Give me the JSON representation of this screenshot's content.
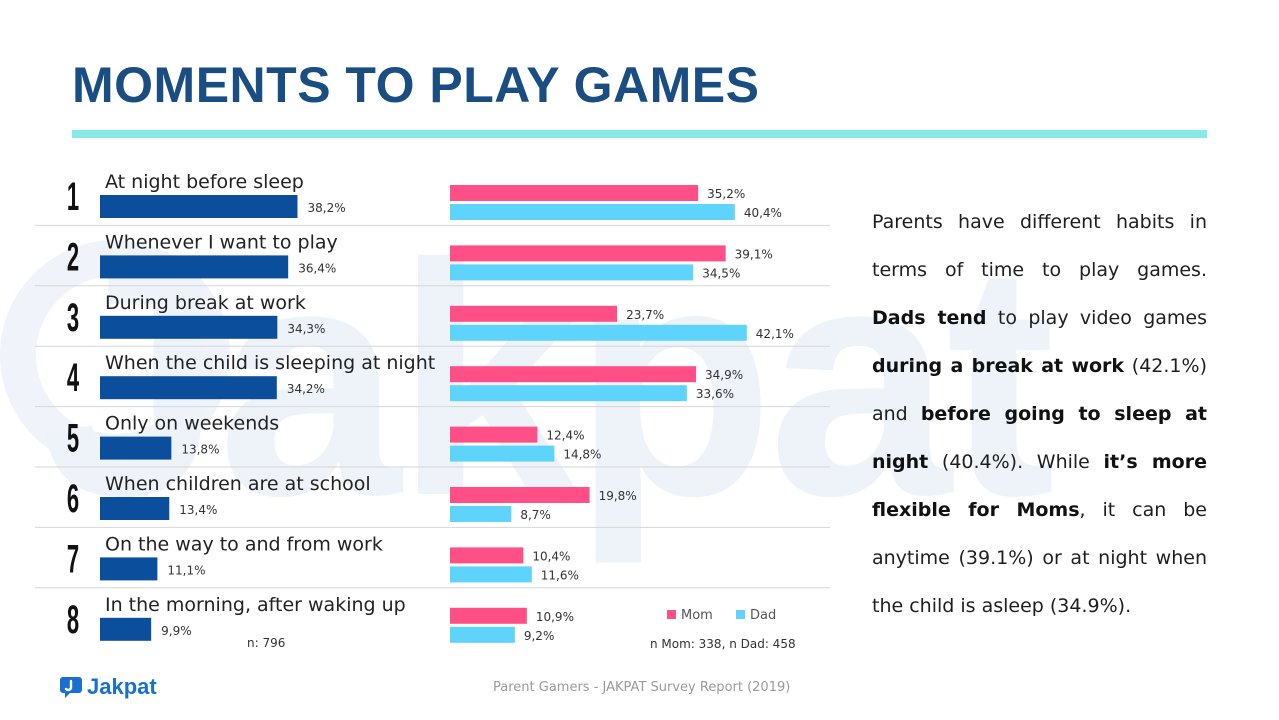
{
  "page": {
    "title": "MOMENTS TO PLAY GAMES",
    "footer": "Parent Gamers - JAKPAT Survey Report (2019)",
    "brand": "Jakpat",
    "watermark": "Jakpat",
    "description": [
      {
        "text": "Parents have different habits in terms of time to play games. ",
        "bold": false
      },
      {
        "text": "Dads tend",
        "bold": true
      },
      {
        "text": " to play video games ",
        "bold": false
      },
      {
        "text": "during a break at work",
        "bold": true
      },
      {
        "text": " (42.1%) and ",
        "bold": false
      },
      {
        "text": "before going to sleep at night",
        "bold": true
      },
      {
        "text": " (40.4%). While ",
        "bold": false
      },
      {
        "text": "it’s more flexible for Moms",
        "bold": true
      },
      {
        "text": ", it can be anytime (39.1%) or at night when the child is asleep (34.9%).",
        "bold": false
      }
    ]
  },
  "chart_data": [
    {
      "type": "bar",
      "orientation": "horizontal",
      "categories": [
        "At night before sleep",
        "Whenever I want to play",
        "During break at work",
        "When the child is sleeping at night",
        "Only on weekends",
        "When children are at school",
        "On the way to and from work",
        "In the morning, after waking up"
      ],
      "ranks": [
        "1",
        "2",
        "3",
        "4",
        "5",
        "6",
        "7",
        "8"
      ],
      "values": [
        38.2,
        36.4,
        34.3,
        34.2,
        13.8,
        13.4,
        11.1,
        9.9
      ],
      "value_labels": [
        "38,2%",
        "36,4%",
        "34,3%",
        "34,2%",
        "13,8%",
        "13,4%",
        "11,1%",
        "9,9%"
      ],
      "note": "n: 796",
      "color": "#0b4f9c"
    },
    {
      "type": "bar",
      "orientation": "horizontal",
      "categories": [
        "At night before sleep",
        "Whenever I want to play",
        "During break at work",
        "When the child is sleeping at night",
        "Only on weekends",
        "When children are at school",
        "On the way to and from work",
        "In the morning, after waking up"
      ],
      "series": [
        {
          "name": "Mom",
          "color": "#ff4f86",
          "values": [
            35.2,
            39.1,
            23.7,
            34.9,
            12.4,
            19.8,
            10.4,
            10.9
          ],
          "labels": [
            "35,2%",
            "39,1%",
            "23,7%",
            "34,9%",
            "12,4%",
            "19,8%",
            "10,4%",
            "10,9%"
          ]
        },
        {
          "name": "Dad",
          "color": "#5ed3fb",
          "values": [
            40.4,
            34.5,
            42.1,
            33.6,
            14.8,
            8.7,
            11.6,
            9.2
          ],
          "labels": [
            "40,4%",
            "34,5%",
            "42,1%",
            "33,6%",
            "14,8%",
            "8,7%",
            "11,6%",
            "9,2%"
          ]
        }
      ],
      "legend_position": "bottom-right",
      "note": "n Mom: 338, n Dad: 458"
    }
  ]
}
